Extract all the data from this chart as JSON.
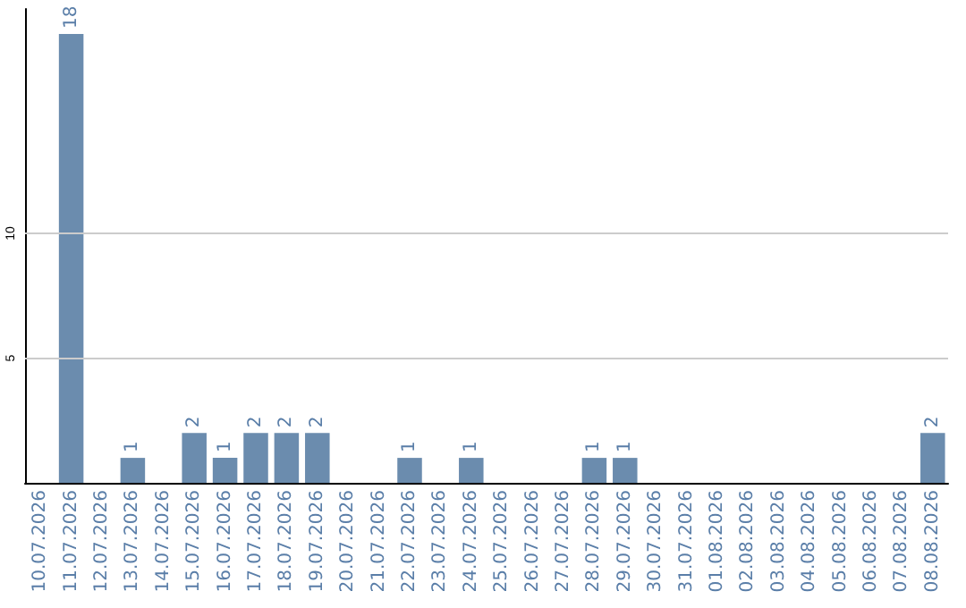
{
  "chart_data": {
    "type": "bar",
    "categories": [
      "10.07.2026",
      "11.07.2026",
      "12.07.2026",
      "13.07.2026",
      "14.07.2026",
      "15.07.2026",
      "16.07.2026",
      "17.07.2026",
      "18.07.2026",
      "19.07.2026",
      "20.07.2026",
      "21.07.2026",
      "22.07.2026",
      "23.07.2026",
      "24.07.2026",
      "25.07.2026",
      "26.07.2026",
      "27.07.2026",
      "28.07.2026",
      "29.07.2026",
      "30.07.2026",
      "31.07.2026",
      "01.08.2026",
      "02.08.2026",
      "03.08.2026",
      "04.08.2026",
      "05.08.2026",
      "06.08.2026",
      "07.08.2026",
      "08.08.2026"
    ],
    "values": [
      0,
      18,
      0,
      1,
      0,
      2,
      1,
      2,
      2,
      2,
      0,
      0,
      1,
      0,
      1,
      0,
      0,
      0,
      1,
      1,
      0,
      0,
      0,
      0,
      0,
      0,
      0,
      0,
      0,
      2
    ],
    "value_labels": [
      null,
      "18",
      null,
      "1",
      null,
      "2",
      "1",
      "2",
      "2",
      "2",
      null,
      null,
      "1",
      null,
      "1",
      null,
      null,
      null,
      "1",
      "1",
      null,
      null,
      null,
      null,
      null,
      null,
      null,
      null,
      null,
      "2"
    ],
    "color": "#6b8cae",
    "ylim": [
      0,
      19
    ],
    "yticks": [
      5,
      10
    ],
    "grid": "y"
  }
}
